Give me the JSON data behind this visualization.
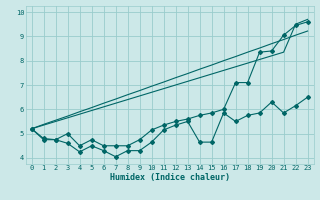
{
  "xlabel": "Humidex (Indice chaleur)",
  "bg_color": "#cce8e8",
  "grid_color": "#99cccc",
  "line_color": "#006666",
  "x": [
    0,
    1,
    2,
    3,
    4,
    5,
    6,
    7,
    8,
    9,
    10,
    11,
    12,
    13,
    14,
    15,
    16,
    17,
    18,
    19,
    20,
    21,
    22,
    23
  ],
  "line_zigzag": [
    5.2,
    4.75,
    4.75,
    4.6,
    4.25,
    4.5,
    4.3,
    4.05,
    4.3,
    4.3,
    4.65,
    5.15,
    5.35,
    5.5,
    4.65,
    4.65,
    5.85,
    5.5,
    5.75,
    5.85,
    6.3,
    5.85,
    6.15,
    6.5
  ],
  "line_data": [
    5.2,
    4.8,
    4.75,
    5.0,
    4.5,
    4.75,
    4.5,
    4.5,
    4.5,
    4.75,
    5.15,
    5.35,
    5.5,
    5.6,
    5.75,
    5.85,
    6.0,
    7.1,
    7.1,
    8.35,
    8.4,
    9.05,
    9.45,
    9.6
  ],
  "line_trend1": [
    5.2,
    5.38,
    5.55,
    5.72,
    5.9,
    6.07,
    6.25,
    6.42,
    6.6,
    6.77,
    6.95,
    7.12,
    7.3,
    7.47,
    7.65,
    7.82,
    8.0,
    8.17,
    8.35,
    8.52,
    8.7,
    8.87,
    9.05,
    9.22
  ],
  "line_trend2": [
    5.2,
    5.35,
    5.5,
    5.65,
    5.8,
    5.95,
    6.1,
    6.25,
    6.4,
    6.55,
    6.7,
    6.85,
    7.0,
    7.15,
    7.3,
    7.45,
    7.6,
    7.75,
    7.9,
    8.05,
    8.2,
    8.35,
    9.5,
    9.7
  ],
  "ylim": [
    3.75,
    10.25
  ],
  "xlim": [
    -0.5,
    23.5
  ],
  "yticks": [
    4,
    5,
    6,
    7,
    8,
    9,
    10
  ],
  "xticks": [
    0,
    1,
    2,
    3,
    4,
    5,
    6,
    7,
    8,
    9,
    10,
    11,
    12,
    13,
    14,
    15,
    16,
    17,
    18,
    19,
    20,
    21,
    22,
    23
  ],
  "figsize": [
    3.2,
    2.0
  ],
  "dpi": 100
}
